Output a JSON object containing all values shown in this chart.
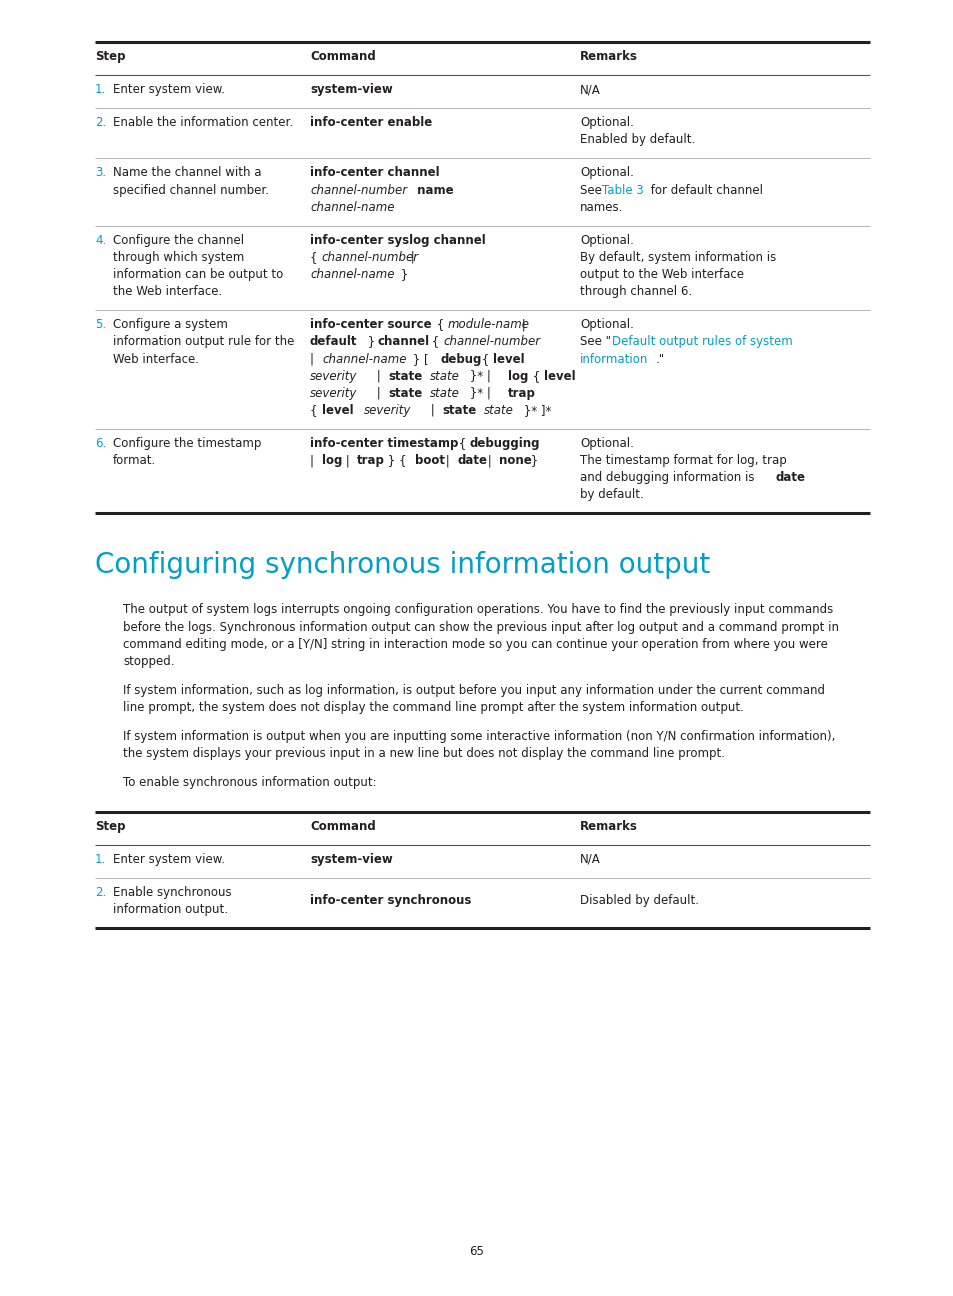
{
  "page_bg": "#ffffff",
  "page_num": "65",
  "cyan_color": "#00a0c6",
  "black_color": "#231f20",
  "section_title": "Configuring synchronous information output",
  "section_title_color": "#00a0c6",
  "paragraphs": [
    "The output of system logs interrupts ongoing configuration operations. You have to find the previously input commands before the logs. Synchronous information output can show the previous input after log output and a command prompt in command editing mode, or a [Y/N] string in interaction mode so you can continue your operation from where you were stopped.",
    "If system information, such as log information, is output before you input any information under the current command line prompt, the system does not display the command line prompt after the system information output.",
    "If system information is output when you are inputting some interactive information (non Y/N confirmation information), the system displays your previous input in a new line but does not display the command line prompt.",
    "To enable synchronous information output:"
  ]
}
